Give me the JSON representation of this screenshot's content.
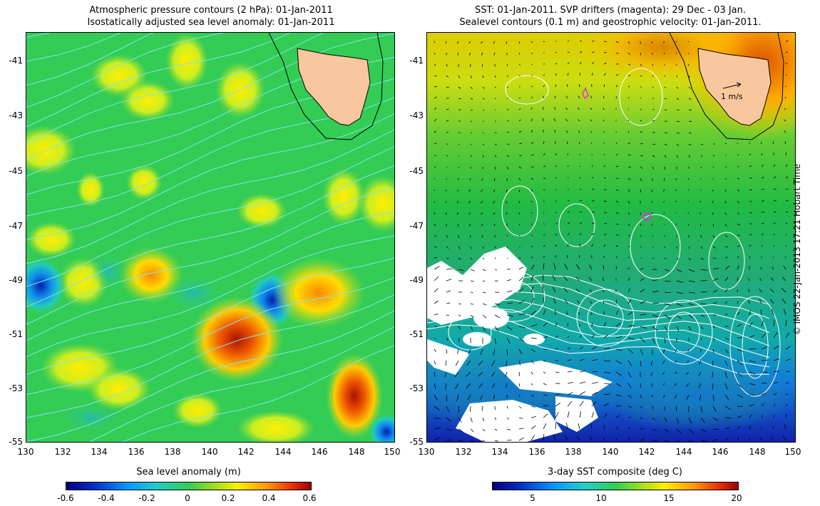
{
  "left_panel": {
    "title_line1": "Atmospheric pressure contours (2 hPa): 01-Jan-2011",
    "title_line2": "Isostatically adjusted sea level anomaly: 01-Jan-2011",
    "lat_ticks": [
      "-41",
      "-43",
      "-45",
      "-47",
      "-49",
      "-51",
      "-53",
      "-55"
    ],
    "lon_ticks": [
      "130",
      "132",
      "134",
      "136",
      "138",
      "140",
      "142",
      "144",
      "146",
      "148",
      "150"
    ],
    "colorbar_label": "Sea level anomaly (m)",
    "colorbar_ticks": [
      "-0.6",
      "-0.4",
      "-0.2",
      "0",
      "0.2",
      "0.4",
      "0.6"
    ]
  },
  "right_panel": {
    "title_line1": "SST: 01-Jan-2011. SVP drifters (magenta): 29 Dec - 03 Jan.",
    "title_line2": "Sealevel contours (0.1 m) and geostrophic velocity: 01-Jan-2011.",
    "lat_ticks": [
      "-41",
      "-43",
      "-45",
      "-47",
      "-49",
      "-51",
      "-53",
      "-55"
    ],
    "lon_ticks": [
      "130",
      "132",
      "134",
      "136",
      "138",
      "140",
      "142",
      "144",
      "146",
      "148",
      "150"
    ],
    "velocity_scale_label": "1 m/s",
    "colorbar_label": "3-day SST composite (deg C)",
    "colorbar_ticks": [
      "5",
      "10",
      "15",
      "20"
    ]
  },
  "credit": "© IMOS 22-Jan-2013 17:21 Hobart Time",
  "colors": {
    "sla_background": "#33cc55",
    "land": "#f9c79d",
    "pressure_contour": "#7ee6e6",
    "sst_contour": "#ffffff",
    "drifter": "#dd33dd"
  }
}
